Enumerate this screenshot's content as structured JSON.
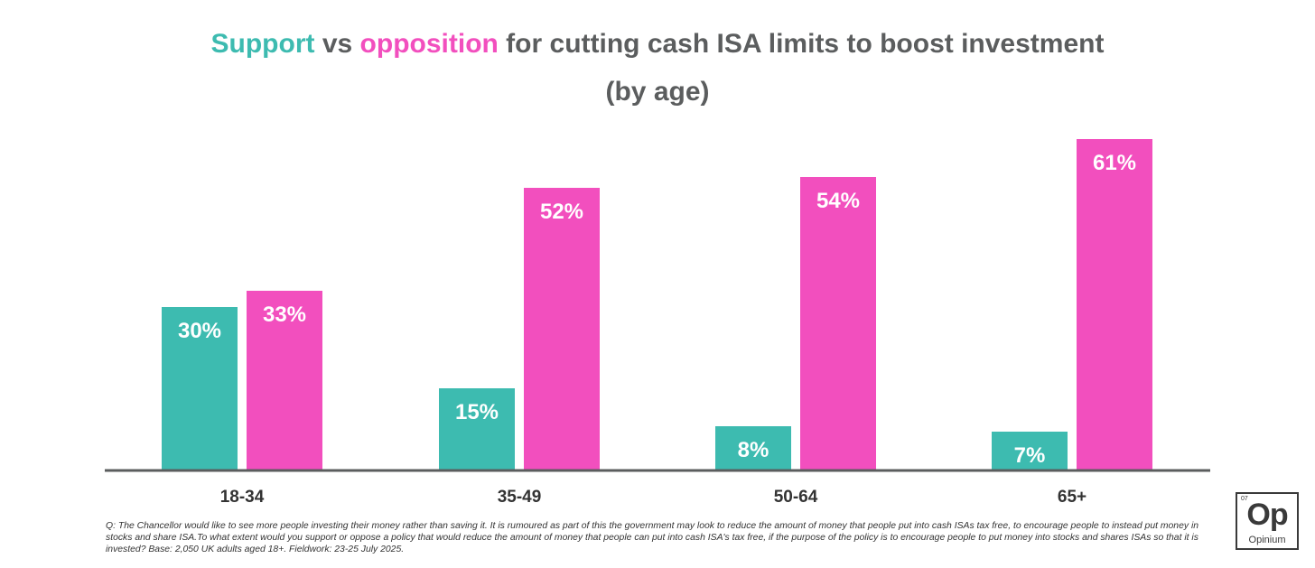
{
  "title": {
    "support_word": "Support",
    "vs_word": " vs ",
    "opposition_word": "opposition",
    "rest": " for cutting cash ISA limits to boost investment",
    "line2": "(by age)"
  },
  "colors": {
    "support": "#3dbbb0",
    "opposition": "#f24fbe",
    "axis": "#5b5d5e",
    "title_text": "#5b5d5e"
  },
  "chart_data": {
    "type": "bar",
    "title": "Support vs opposition for cutting cash ISA limits to boost investment (by age)",
    "xlabel": "",
    "ylabel": "",
    "ylim": [
      0,
      65
    ],
    "categories": [
      "18-34",
      "35-49",
      "50-64",
      "65+"
    ],
    "series": [
      {
        "name": "Support",
        "values": [
          30,
          15,
          8,
          7
        ],
        "labels": [
          "30%",
          "15%",
          "8%",
          "7%"
        ]
      },
      {
        "name": "Opposition",
        "values": [
          33,
          52,
          54,
          61
        ],
        "labels": [
          "33%",
          "52%",
          "54%",
          "61%"
        ]
      }
    ]
  },
  "footnote": "Q: The Chancellor would like to see more people investing their money rather than saving it. It is rumoured as part of this the government may look to reduce the amount of money that people put into cash ISAs tax free, to encourage people to instead put money in stocks and share ISA.To what extent would you support or oppose a policy that would reduce the amount of money that people can put into cash ISA's tax free, if the purpose of the policy is to encourage people to put money into stocks and shares ISAs so that it is invested? Base: 2,050 UK adults aged 18+. Fieldwork: 23-25 July 2025.",
  "logo": {
    "number": "07",
    "symbol": "Op",
    "name": "Opinium"
  }
}
